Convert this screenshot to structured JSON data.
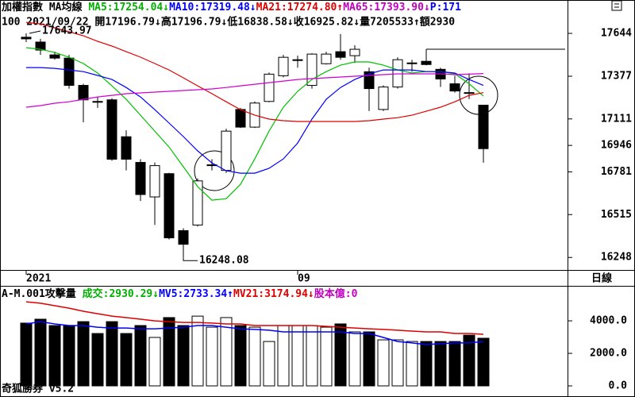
{
  "header": {
    "line1": [
      {
        "text": "加權指數 MA均線 ",
        "color": "#000000"
      },
      {
        "text": "MA5:17254.04↓",
        "color": "#00b000"
      },
      {
        "text": "MA10:17319.48↓",
        "color": "#0000ff"
      },
      {
        "text": "MA21:17274.80↑",
        "color": "#e00000"
      },
      {
        "text": "MA65:17393.90↓",
        "color": "#c000c0"
      },
      {
        "text": "P:171",
        "color": "#0000ff"
      }
    ],
    "line2": "100 2021/09/22 開17196.79↓高17196.79↓低16838.58↓收16925.82↓量7205533↑額2930"
  },
  "panel_label": "日線",
  "footer": "奇狐勝券 v5.2",
  "chart_data": [
    {
      "type": "candlestick",
      "x_labels": [
        {
          "index": 0,
          "label": "2021"
        },
        {
          "index": 19,
          "label": "09"
        }
      ],
      "candles": {
        "open": [
          17620,
          17590,
          17510,
          17490,
          17320,
          17220,
          17230,
          17000,
          16840,
          16625,
          16770,
          16415,
          16450,
          16820,
          16790,
          17170,
          17060,
          17220,
          17380,
          17475,
          17320,
          17455,
          17530,
          17505,
          17405,
          17170,
          17310,
          17455,
          17470,
          17420,
          17330,
          17275,
          17196.79
        ],
        "high": [
          17643.97,
          17610,
          17530,
          17510,
          17330,
          17250,
          17240,
          17040,
          16860,
          16840,
          16775,
          16430,
          16740,
          16860,
          17050,
          17180,
          17220,
          17400,
          17510,
          17505,
          17520,
          17530,
          17640,
          17570,
          17430,
          17320,
          17495,
          17480,
          17545,
          17430,
          17380,
          17395,
          17196.79
        ],
        "low": [
          17590,
          17510,
          17480,
          17300,
          17090,
          17180,
          16850,
          16790,
          16600,
          16450,
          16360,
          16248.08,
          16440,
          16790,
          16775,
          17055,
          17055,
          17215,
          17370,
          17430,
          17300,
          17450,
          17480,
          17460,
          17160,
          17160,
          17300,
          17405,
          17445,
          17310,
          17275,
          17235,
          16838.58
        ],
        "close": [
          17610,
          17540,
          17490,
          17320,
          17230,
          17215,
          16860,
          16860,
          16640,
          16820,
          16370,
          16330,
          16725,
          16825,
          17035,
          17060,
          17210,
          17390,
          17495,
          17480,
          17515,
          17515,
          17495,
          17545,
          17300,
          17310,
          17480,
          17460,
          17450,
          17360,
          17285,
          17270,
          16925.82
        ]
      },
      "series": [
        {
          "color": "#00c000",
          "values": [
            17555,
            17545,
            17525,
            17496,
            17456,
            17397,
            17317,
            17233,
            17134,
            17035,
            16936,
            16813,
            16689,
            16605,
            16614,
            16704,
            16862,
            17035,
            17184,
            17283,
            17357,
            17406,
            17446,
            17466,
            17466,
            17446,
            17416,
            17397,
            17406,
            17406,
            17392,
            17330,
            17254.04
          ]
        },
        {
          "color": "#0000ff",
          "values": [
            17431,
            17431,
            17426,
            17416,
            17406,
            17382,
            17357,
            17307,
            17248,
            17169,
            17085,
            17001,
            16912,
            16837,
            16788,
            16773,
            16773,
            16803,
            16862,
            16961,
            17110,
            17233,
            17307,
            17357,
            17392,
            17416,
            17416,
            17416,
            17406,
            17406,
            17397,
            17357,
            17319.48
          ]
        },
        {
          "color": "#e00000",
          "values": [
            17713,
            17703,
            17679,
            17654,
            17629,
            17595,
            17565,
            17530,
            17496,
            17456,
            17416,
            17367,
            17317,
            17268,
            17218,
            17169,
            17134,
            17110,
            17100,
            17095,
            17095,
            17095,
            17095,
            17095,
            17100,
            17110,
            17119,
            17134,
            17159,
            17184,
            17218,
            17258,
            17274.8
          ]
        },
        {
          "color": "#d000d0",
          "values": [
            17184,
            17194,
            17209,
            17218,
            17233,
            17248,
            17258,
            17268,
            17273,
            17278,
            17283,
            17288,
            17293,
            17298,
            17307,
            17317,
            17327,
            17337,
            17347,
            17357,
            17362,
            17367,
            17372,
            17377,
            17382,
            17387,
            17392,
            17392,
            17392,
            17392,
            17387,
            17390,
            17393.9
          ]
        }
      ],
      "level_line": 17545,
      "up_color": "#ffffff",
      "down_color": "#000000",
      "ylim": [
        16170,
        17852
      ],
      "yticks": [
        16248,
        16515,
        16781,
        16946,
        17111,
        17377,
        17644
      ]
    },
    {
      "type": "bar",
      "header": [
        {
          "text": "A-M.001攻擊量 ",
          "color": "#000000"
        },
        {
          "text": "成交:2930.29↓",
          "color": "#00b000"
        },
        {
          "text": "MV5:2733.34↑",
          "color": "#0000ff"
        },
        {
          "text": "MV21:3174.94↓",
          "color": "#e00000"
        },
        {
          "text": "股本億:0",
          "color": "#c000c0"
        }
      ],
      "values": [
        3860,
        4100,
        3710,
        3710,
        3950,
        3220,
        3950,
        3220,
        3710,
        2980,
        4200,
        3710,
        4290,
        3610,
        4200,
        3710,
        3610,
        2730,
        3710,
        3710,
        3710,
        3610,
        3810,
        3320,
        3320,
        2830,
        2830,
        2730,
        2730,
        2730,
        2730,
        3120,
        2930.29
      ],
      "series": [
        {
          "color": "#0000ff",
          "values": [
            3810,
            3950,
            3810,
            3710,
            3710,
            3610,
            3560,
            3560,
            3510,
            3510,
            3560,
            3610,
            3710,
            3710,
            3610,
            3510,
            3470,
            3420,
            3320,
            3320,
            3320,
            3320,
            3320,
            3220,
            3220,
            2980,
            2730,
            2640,
            2540,
            2590,
            2640,
            2640,
            2733.34
          ]
        },
        {
          "color": "#e00000",
          "values": [
            5170,
            5080,
            4930,
            4780,
            4590,
            4440,
            4290,
            4200,
            4100,
            4000,
            3950,
            3900,
            3900,
            3860,
            3810,
            3810,
            3710,
            3710,
            3710,
            3710,
            3710,
            3660,
            3610,
            3560,
            3510,
            3470,
            3420,
            3370,
            3320,
            3320,
            3220,
            3220,
            3174.94
          ]
        }
      ],
      "ylim": [
        0,
        5175
      ],
      "yticks": [
        {
          "value": 0,
          "label": "0.0"
        },
        {
          "value": 2000,
          "label": "2000.0"
        },
        {
          "value": 4000,
          "label": "4000.0"
        }
      ]
    }
  ]
}
